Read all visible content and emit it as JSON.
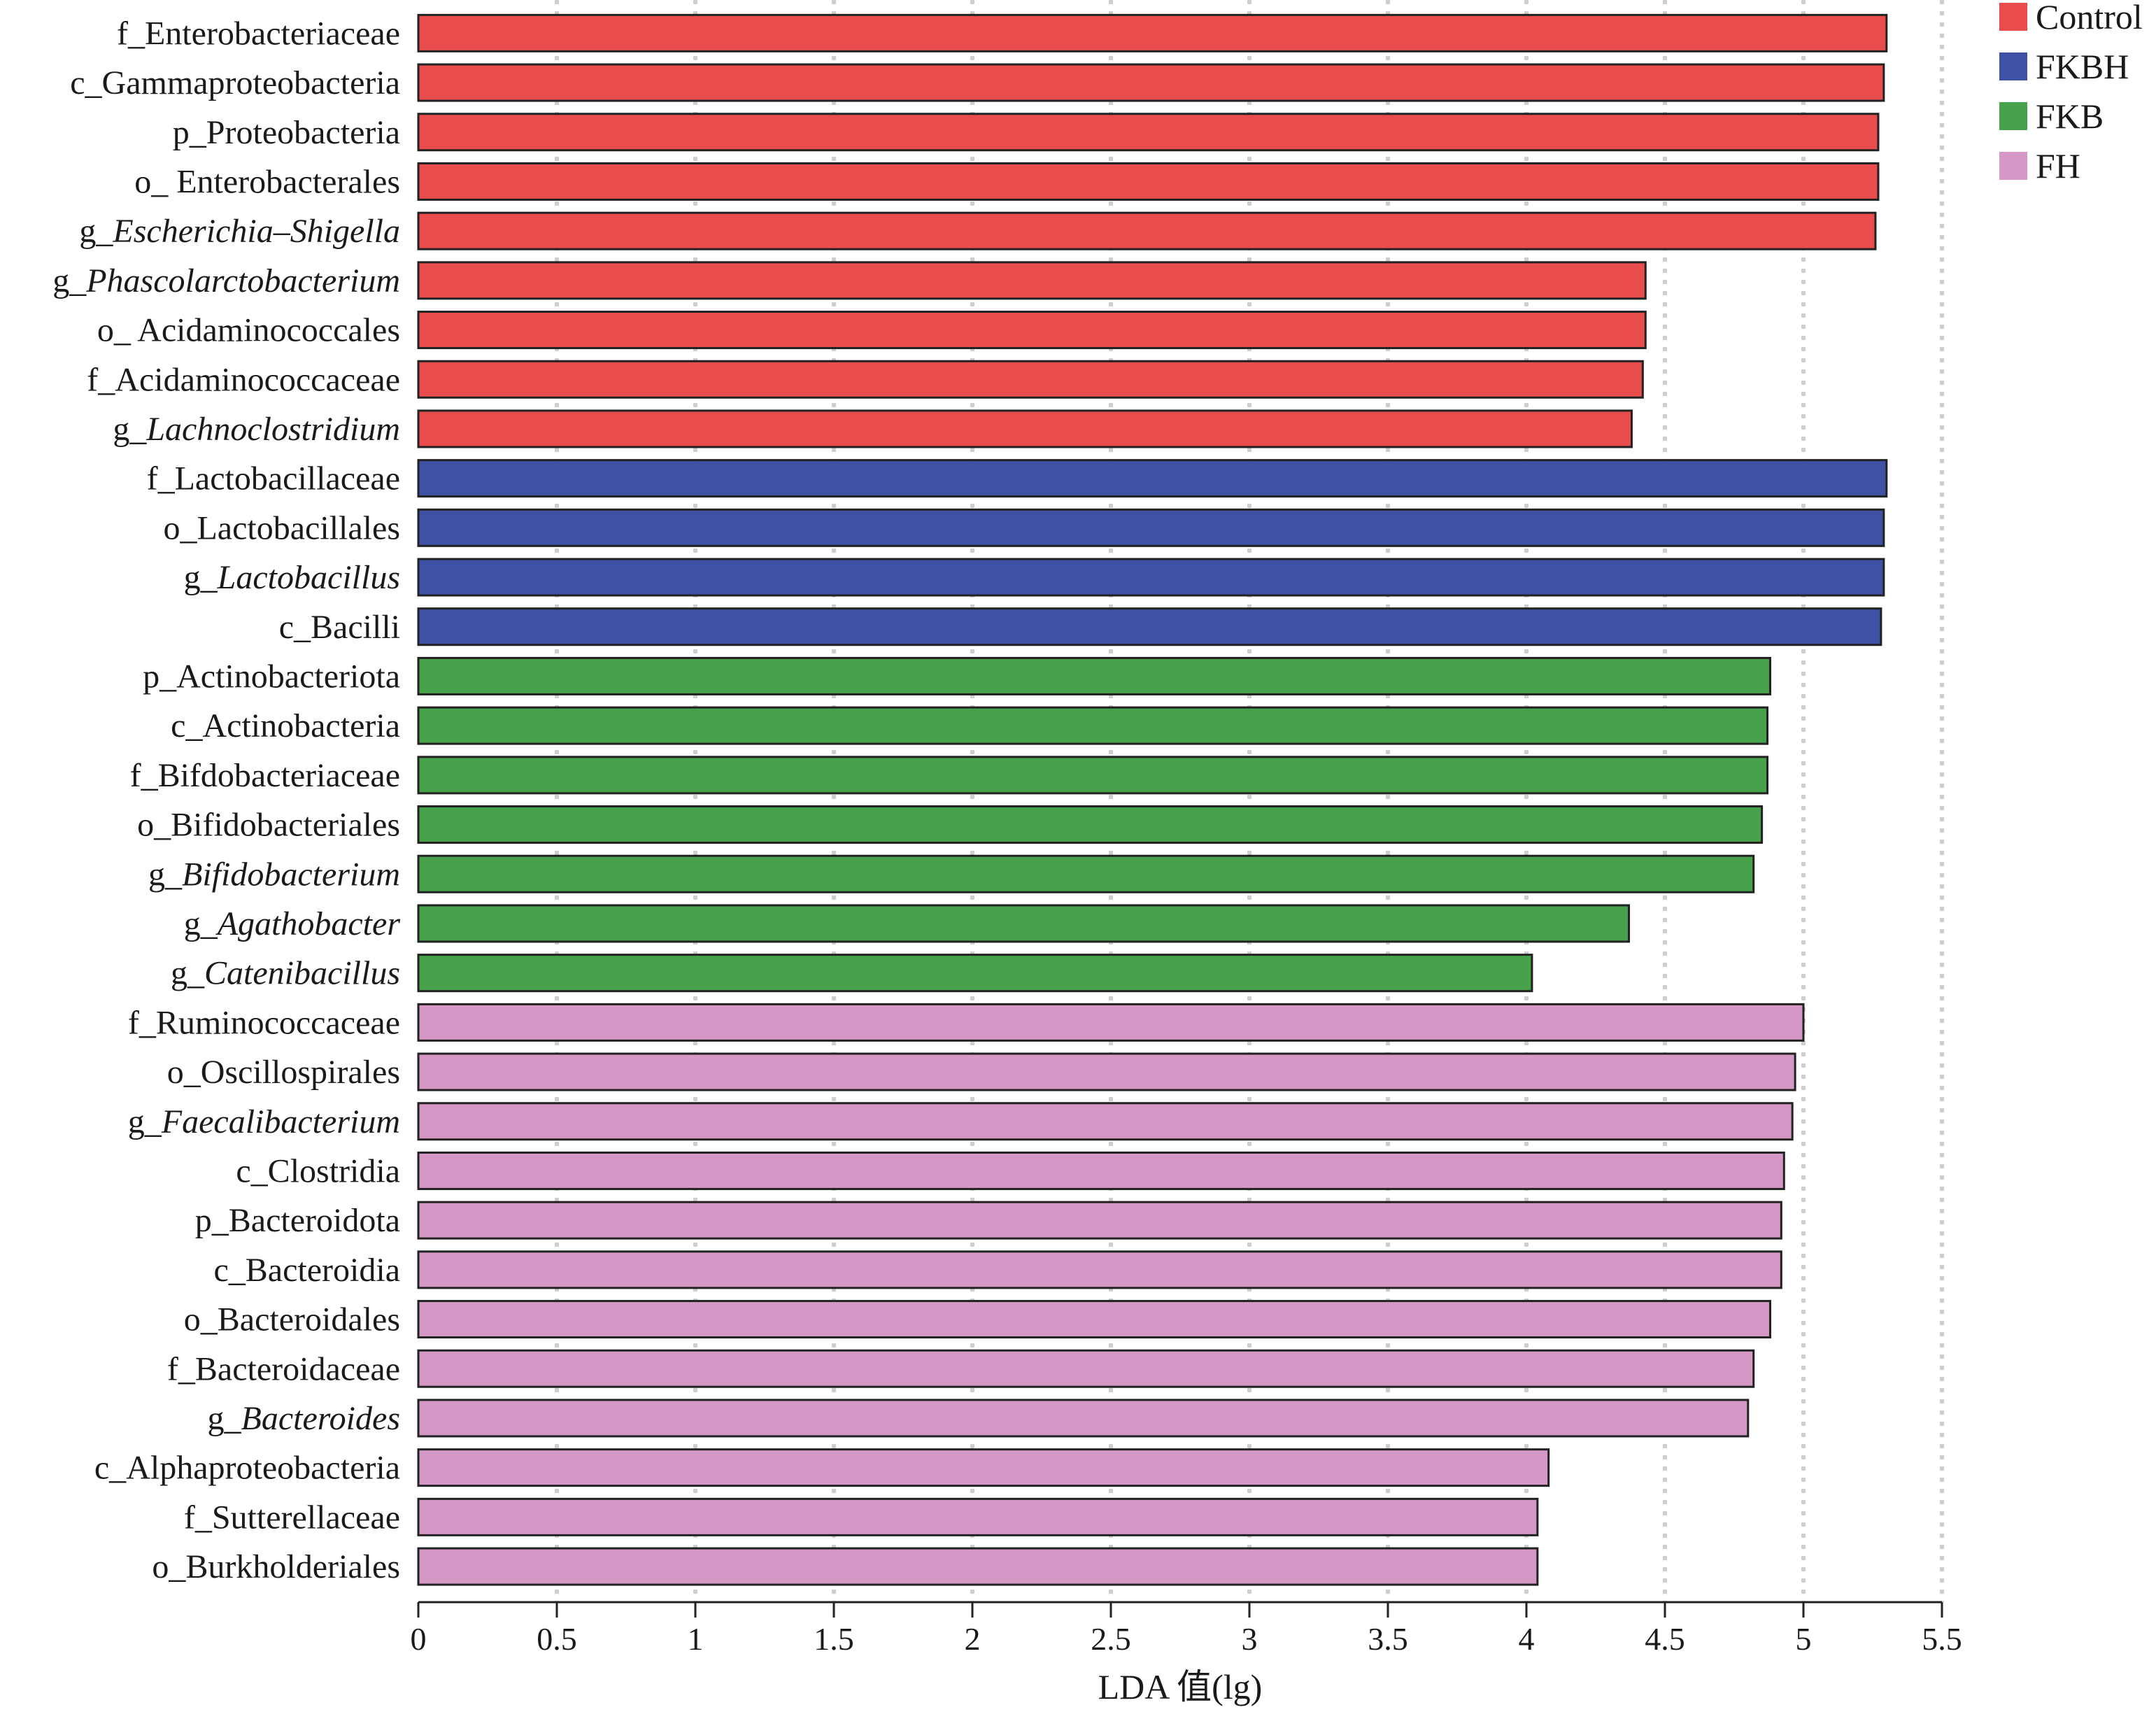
{
  "chart_data": {
    "type": "bar",
    "orientation": "horizontal",
    "xlabel": "LDA 值(lg)",
    "xlim": [
      0,
      5.5
    ],
    "xticks": [
      0,
      0.5,
      1,
      1.5,
      2,
      2.5,
      3,
      3.5,
      4,
      4.5,
      5,
      5.5
    ],
    "xtick_labels": [
      "0",
      "0.5",
      "1",
      "1.5",
      "2",
      "2.5",
      "3",
      "3.5",
      "4",
      "4.5",
      "5",
      "5.5"
    ],
    "grid": "vertical dotted",
    "legend_position": "top-right",
    "groups": [
      {
        "name": "Control",
        "color": "#e84c4d"
      },
      {
        "name": "FKBH",
        "color": "#3f51a5"
      },
      {
        "name": "FKB",
        "color": "#47a04a"
      },
      {
        "name": "FH",
        "color": "#d497c6"
      }
    ],
    "bars": [
      {
        "prefix": "f_",
        "name": "Enterobacteriaceae",
        "italic": false,
        "group": "Control",
        "value": 5.3
      },
      {
        "prefix": "c_",
        "name": "Gammaproteobacteria",
        "italic": false,
        "group": "Control",
        "value": 5.29
      },
      {
        "prefix": "p_",
        "name": "Proteobacteria",
        "italic": false,
        "group": "Control",
        "value": 5.27
      },
      {
        "prefix": "o_ ",
        "name": "Enterobacterales",
        "italic": false,
        "group": "Control",
        "value": 5.27
      },
      {
        "prefix": "g_",
        "name": "Escherichia–Shigella",
        "italic": true,
        "group": "Control",
        "value": 5.26
      },
      {
        "prefix": "g_",
        "name": "Phascolarctobacterium",
        "italic": true,
        "group": "Control",
        "value": 4.43
      },
      {
        "prefix": "o_ ",
        "name": "Acidaminococcales",
        "italic": false,
        "group": "Control",
        "value": 4.43
      },
      {
        "prefix": "f_",
        "name": "Acidaminococcaceae",
        "italic": false,
        "group": "Control",
        "value": 4.42
      },
      {
        "prefix": "g_",
        "name": "Lachnoclostridium",
        "italic": true,
        "group": "Control",
        "value": 4.38
      },
      {
        "prefix": "f_",
        "name": "Lactobacillaceae",
        "italic": false,
        "group": "FKBH",
        "value": 5.3
      },
      {
        "prefix": "o_",
        "name": "Lactobacillales",
        "italic": false,
        "group": "FKBH",
        "value": 5.29
      },
      {
        "prefix": "g_",
        "name": "Lactobacillus",
        "italic": true,
        "group": "FKBH",
        "value": 5.29
      },
      {
        "prefix": "c_",
        "name": "Bacilli",
        "italic": false,
        "group": "FKBH",
        "value": 5.28
      },
      {
        "prefix": "p_",
        "name": "Actinobacteriota",
        "italic": false,
        "group": "FKB",
        "value": 4.88
      },
      {
        "prefix": "c_",
        "name": "Actinobacteria",
        "italic": false,
        "group": "FKB",
        "value": 4.87
      },
      {
        "prefix": "f_",
        "name": "Bifdobacteriaceae",
        "italic": false,
        "group": "FKB",
        "value": 4.87
      },
      {
        "prefix": "o_",
        "name": "Bifidobacteriales",
        "italic": false,
        "group": "FKB",
        "value": 4.85
      },
      {
        "prefix": "g_",
        "name": "Bifidobacterium",
        "italic": true,
        "group": "FKB",
        "value": 4.82
      },
      {
        "prefix": "g_",
        "name": "Agathobacter",
        "italic": true,
        "group": "FKB",
        "value": 4.37
      },
      {
        "prefix": "g_",
        "name": "Catenibacillus",
        "italic": true,
        "group": "FKB",
        "value": 4.02
      },
      {
        "prefix": "f_",
        "name": "Ruminococcaceae",
        "italic": false,
        "group": "FH",
        "value": 5.0
      },
      {
        "prefix": "o_",
        "name": "Oscillospirales",
        "italic": false,
        "group": "FH",
        "value": 4.97
      },
      {
        "prefix": "g_",
        "name": "Faecalibacterium",
        "italic": true,
        "group": "FH",
        "value": 4.96
      },
      {
        "prefix": "c_",
        "name": "Clostridia",
        "italic": false,
        "group": "FH",
        "value": 4.93
      },
      {
        "prefix": "p_",
        "name": "Bacteroidota",
        "italic": false,
        "group": "FH",
        "value": 4.92
      },
      {
        "prefix": "c_",
        "name": "Bacteroidia",
        "italic": false,
        "group": "FH",
        "value": 4.92
      },
      {
        "prefix": "o_",
        "name": "Bacteroidales",
        "italic": false,
        "group": "FH",
        "value": 4.88
      },
      {
        "prefix": "f_",
        "name": "Bacteroidaceae",
        "italic": false,
        "group": "FH",
        "value": 4.82
      },
      {
        "prefix": "g_",
        "name": "Bacteroides",
        "italic": true,
        "group": "FH",
        "value": 4.8
      },
      {
        "prefix": "c_",
        "name": "Alphaproteobacteria",
        "italic": false,
        "group": "FH",
        "value": 4.08
      },
      {
        "prefix": "f_",
        "name": "Sutterellaceae",
        "italic": false,
        "group": "FH",
        "value": 4.04
      },
      {
        "prefix": "o_",
        "name": "Burkholderiales",
        "italic": false,
        "group": "FH",
        "value": 4.04
      }
    ]
  }
}
